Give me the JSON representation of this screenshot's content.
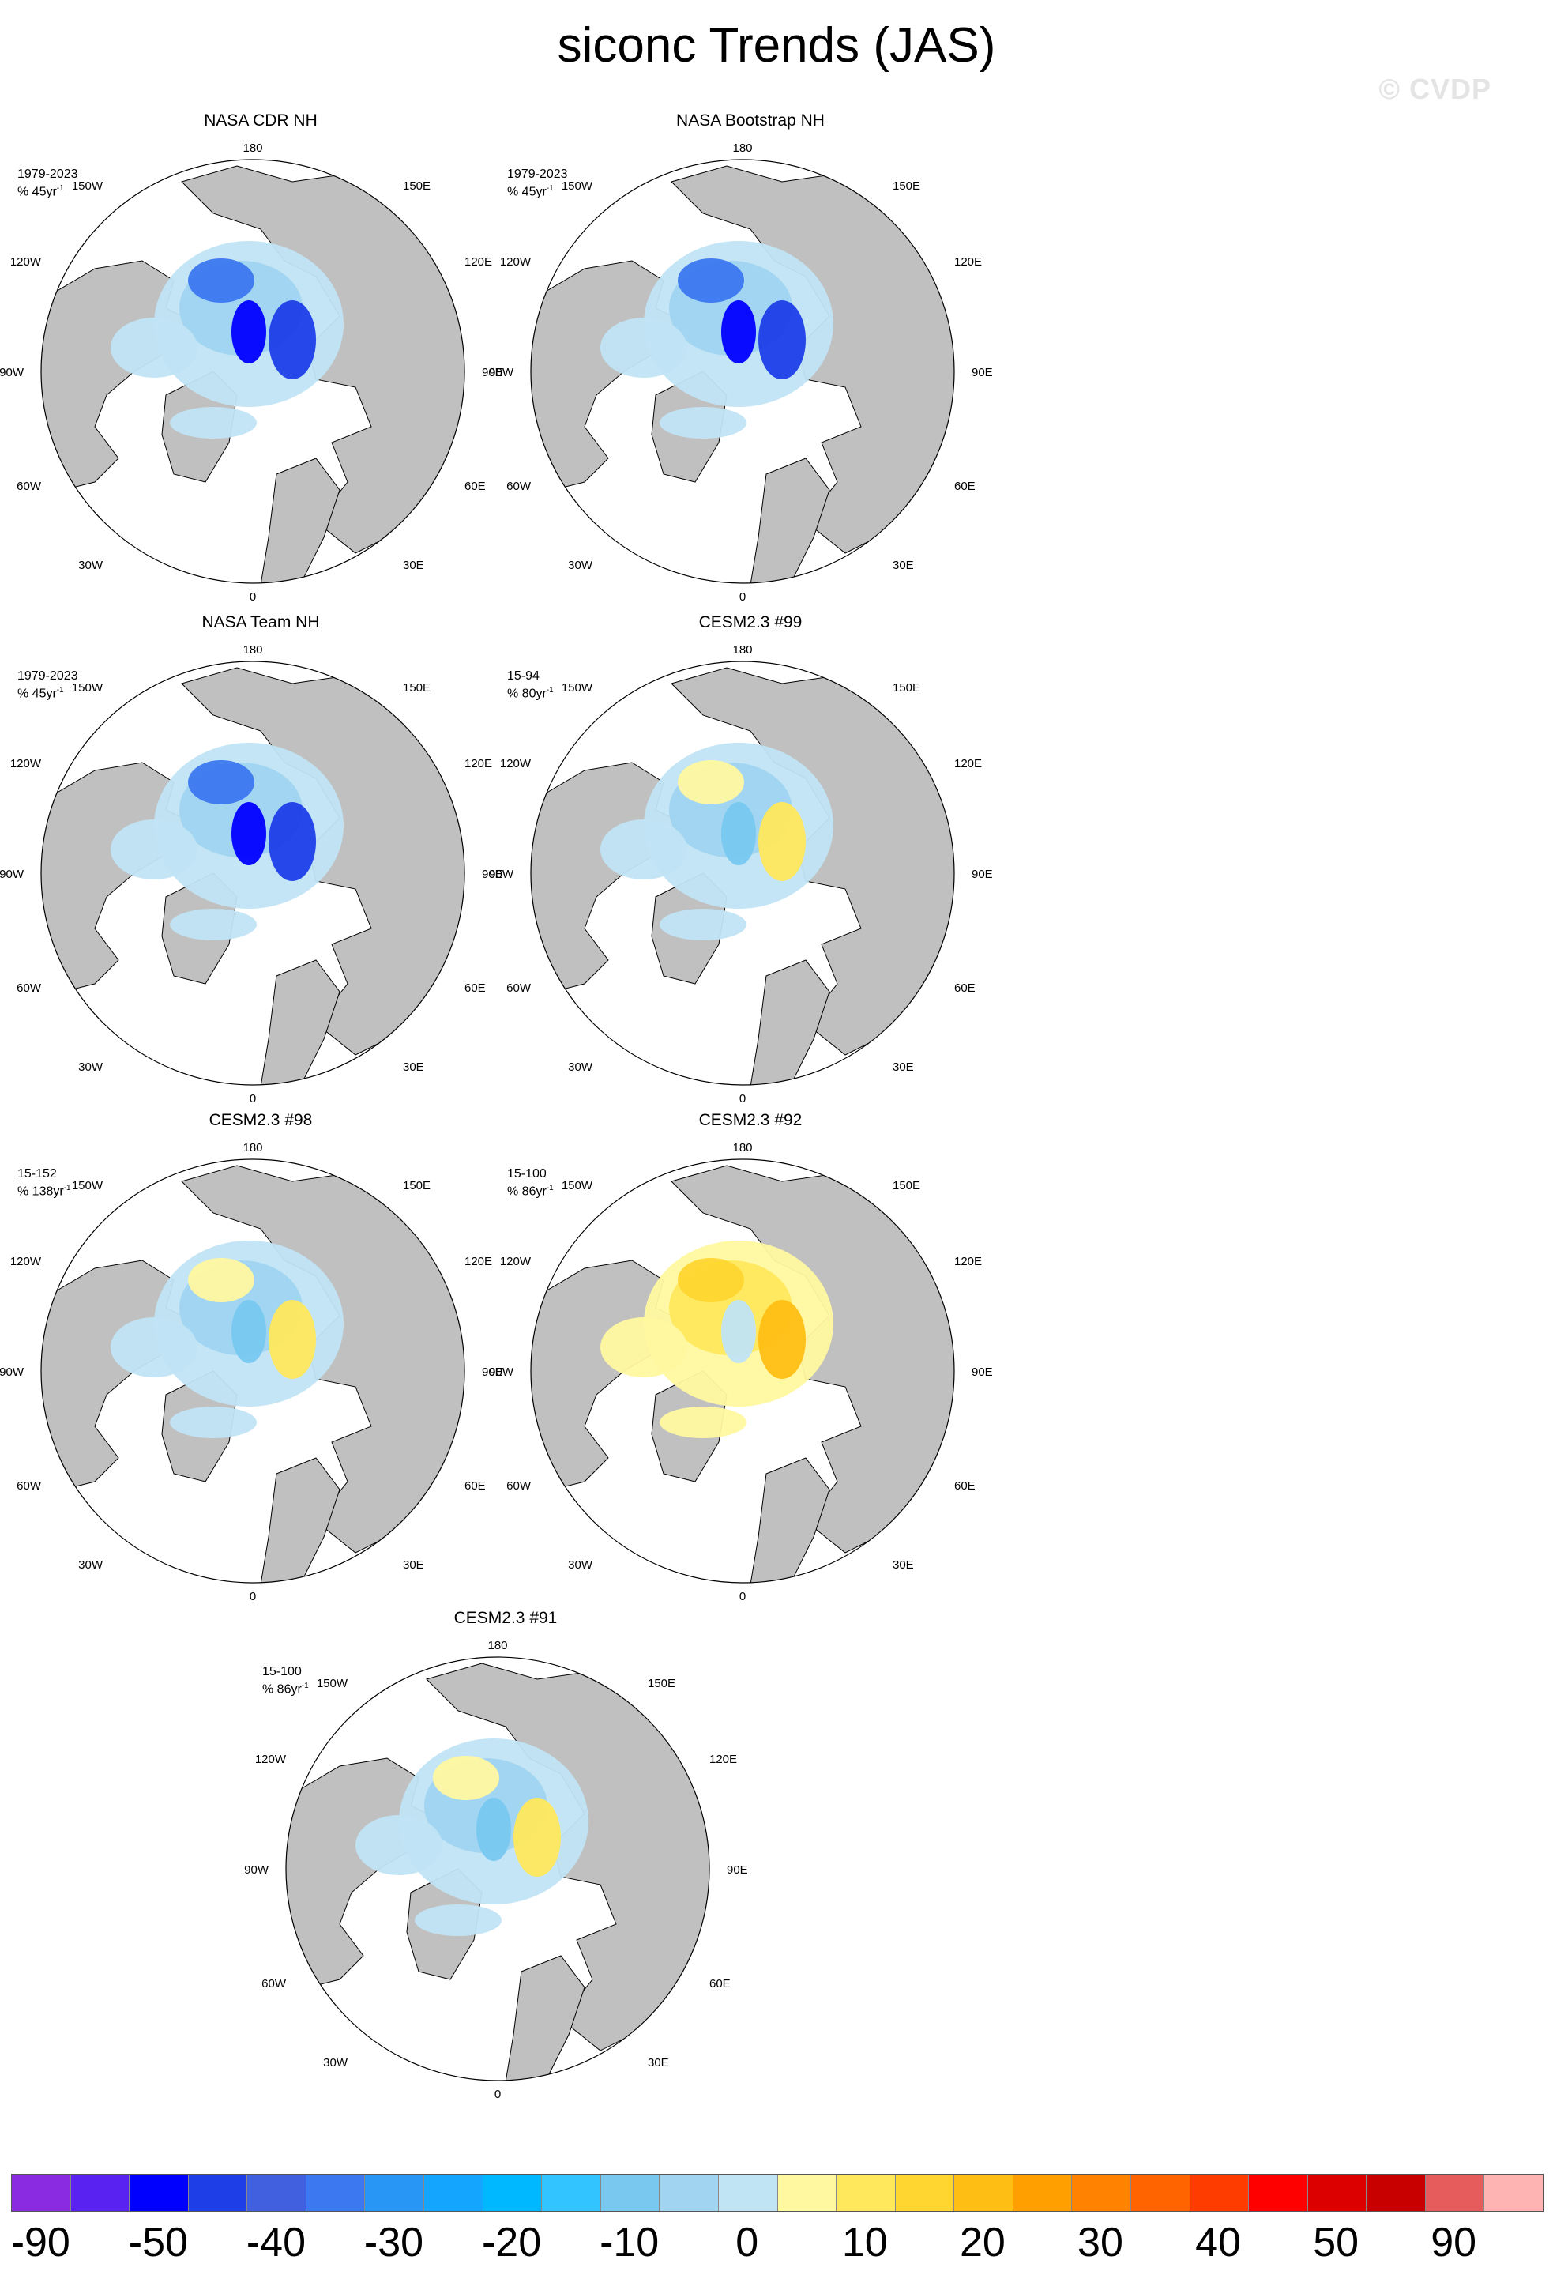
{
  "title": "siconc Trends (JAS)",
  "watermark": "© CVDP",
  "degree_labels": {
    "top": "180",
    "bottom": "0",
    "left": "90W",
    "right": "90E",
    "upper_left_outer": "120W",
    "upper_left_inner": "150W",
    "upper_right_inner": "150E",
    "upper_right_outer": "120E",
    "lower_left_outer": "60W",
    "lower_left_inner": "30W",
    "lower_right_inner": "30E",
    "lower_right_outer": "60E"
  },
  "panels": [
    {
      "title": "NASA CDR NH",
      "period": "1979-2023",
      "rate_prefix": "% 45yr",
      "rate_exp": "-1",
      "pattern": "obs"
    },
    {
      "title": "NASA Bootstrap NH",
      "period": "1979-2023",
      "rate_prefix": "% 45yr",
      "rate_exp": "-1",
      "pattern": "obs"
    },
    {
      "title": "NASA Team NH",
      "period": "1979-2023",
      "rate_prefix": "% 45yr",
      "rate_exp": "-1",
      "pattern": "obs"
    },
    {
      "title": "CESM2.3 #99",
      "period": "15-94",
      "rate_prefix": "% 80yr",
      "rate_exp": "-1",
      "pattern": "model"
    },
    {
      "title": "CESM2.3 #98",
      "period": "15-152",
      "rate_prefix": "% 138yr",
      "rate_exp": "-1",
      "pattern": "model"
    },
    {
      "title": "CESM2.3 #92",
      "period": "15-100",
      "rate_prefix": "% 86yr",
      "rate_exp": "-1",
      "pattern": "model_warm"
    },
    {
      "title": "CESM2.3 #91",
      "period": "15-100",
      "rate_prefix": "% 86yr",
      "rate_exp": "-1",
      "pattern": "model"
    }
  ],
  "legend": {
    "colors": [
      "#8a2be2",
      "#5a22f0",
      "#0000ff",
      "#1e3ee8",
      "#4060e0",
      "#3c78f0",
      "#2896f5",
      "#14a6ff",
      "#00b8ff",
      "#32c4ff",
      "#78c8f0",
      "#a0d4f0",
      "#c0e4f4",
      "#fff8a0",
      "#ffe85c",
      "#ffd630",
      "#ffbe14",
      "#ffa000",
      "#ff8200",
      "#ff6400",
      "#ff3c00",
      "#ff0000",
      "#dc0000",
      "#c80000",
      "#e65c5c",
      "#ffb4b4"
    ],
    "labels": [
      "-90",
      "-50",
      "-40",
      "-30",
      "-20",
      "-10",
      "0",
      "10",
      "20",
      "30",
      "40",
      "50",
      "90"
    ]
  },
  "colors": {
    "land": "#c0c0c0",
    "ocean": "#ffffff"
  }
}
